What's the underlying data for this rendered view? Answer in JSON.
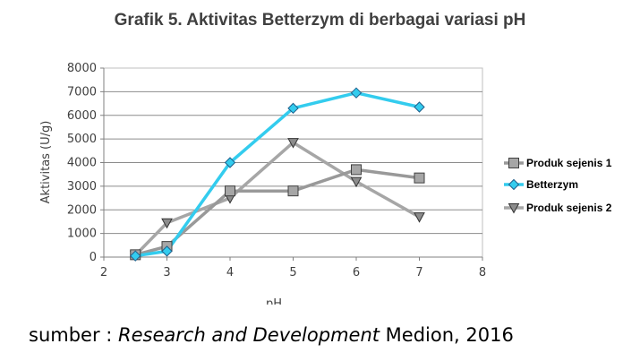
{
  "chart_data": {
    "type": "line",
    "title": "Grafik 5. Aktivitas Betterzym di berbagai variasi pH",
    "xlabel": "pH",
    "ylabel": "Aktivitas (U/g)",
    "xlim": [
      2,
      8
    ],
    "ylim": [
      0,
      8000
    ],
    "x_ticks": [
      "2",
      "3",
      "4",
      "5",
      "6",
      "7",
      "8"
    ],
    "y_ticks": [
      "0",
      "1000",
      "2000",
      "3000",
      "4000",
      "5000",
      "6000",
      "7000",
      "8000"
    ],
    "grid": "horizontal",
    "legend_position": "right",
    "series": [
      {
        "name": "Produk sejenis 1",
        "color": "#999999",
        "marker": "square",
        "points": [
          [
            2.5,
            100
          ],
          [
            3,
            450
          ],
          [
            4,
            2800
          ],
          [
            5,
            2800
          ],
          [
            6,
            3700
          ],
          [
            7,
            3350
          ]
        ]
      },
      {
        "name": "Betterzym",
        "color": "#33ccee",
        "marker": "diamond",
        "points": [
          [
            2.5,
            50
          ],
          [
            3,
            250
          ],
          [
            4,
            4000
          ],
          [
            5,
            6300
          ],
          [
            6,
            6950
          ],
          [
            7,
            6350
          ]
        ]
      },
      {
        "name": "Produk sejenis 2",
        "color": "#a6a6a6",
        "marker": "triangle-down",
        "points": [
          [
            2.5,
            80
          ],
          [
            3,
            1450
          ],
          [
            4,
            2500
          ],
          [
            5,
            4850
          ],
          [
            6,
            3200
          ],
          [
            7,
            1700
          ]
        ]
      }
    ]
  },
  "source": {
    "prefix": "sumber : ",
    "italic": "Research and Development",
    "suffix": " Medion, 2016"
  }
}
